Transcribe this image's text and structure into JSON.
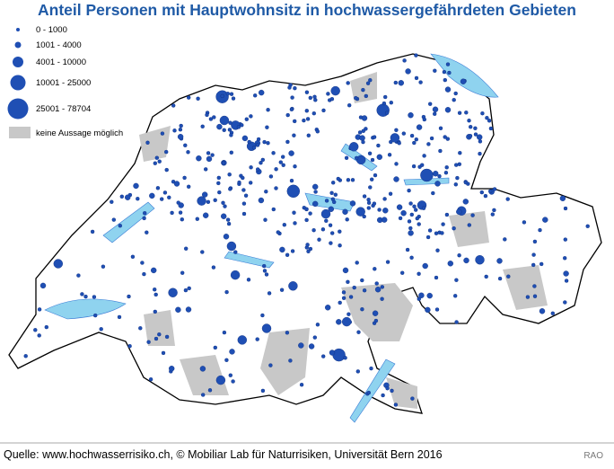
{
  "title": "Anteil Personen mit Hauptwohnsitz in hochwassergefährdeten Gebieten",
  "legend": {
    "items": [
      "0 - 1000",
      "1001 - 4000",
      "4001 - 10000",
      "10001 - 25000",
      "25001 - 78704"
    ],
    "no_data": "keine Aussage möglich"
  },
  "footer": {
    "source": "Quelle: www.hochwasserrisiko.ch, © Mobiliar Lab für Naturrisiken, Universität Bern 2016",
    "credit": "RAO"
  }
}
